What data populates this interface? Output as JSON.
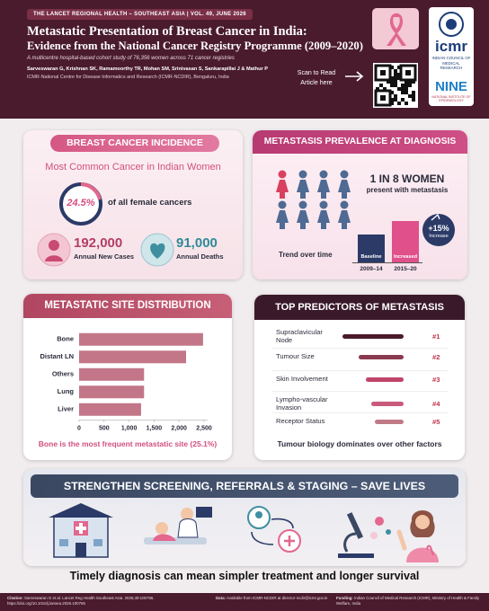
{
  "header": {
    "banner": "THE LANCET REGIONAL HEALTH – SOUTHEAST ASIA | VOL. 49, JUNE 2026",
    "title_line1": "Metastatic Presentation of Breast Cancer in India:",
    "title_line2": "Evidence from the National Cancer Registry Programme (2009–2020)",
    "subtitle": "A multicentre hospital-based cohort study of 76,356 women across 71 cancer registries",
    "authors": "Sarveswaran G, Krishnan SK, Ramamoorthy TR, Mohan SM, Srinivasan S, Sankarapillai J & Mathur P",
    "affiliation": "ICMR-National Centre for Disease Informatics and Research (ICMR-NCDIR), Bengaluru, India",
    "scan": "Scan to Read Article here",
    "logo_icmr": "icmr",
    "logo_icmr_sub": "INDIAN COUNCIL OF MEDICAL RESEARCH",
    "logo_nine": "NINE",
    "logo_nine_sub": "NATIONAL INSTITUTE OF EPIDEMIOLOGY"
  },
  "incidence": {
    "title": "BREAST CANCER INCIDENCE",
    "headline": "Most Common Cancer in Indian Women",
    "share": "24.5%",
    "share_text": "of all female cancers",
    "cases": "192,000",
    "cases_label": "Annual New Cases",
    "deaths": "91,000",
    "deaths_label": "Annual Deaths"
  },
  "prevalence": {
    "title": "METASTASIS PREVALENCE AT DIAGNOSIS",
    "headline": "1 IN 8 WOMEN",
    "headline_sub": "present with metastasis",
    "trend": "Trend over time",
    "bars": [
      {
        "label": "Baseline",
        "period": "2009–14"
      },
      {
        "label": "Increased",
        "period": "2015–20"
      }
    ],
    "change": "+15%",
    "change_label": "Increase"
  },
  "chart_data": {
    "type": "bar",
    "horizontal": true,
    "title": "METASTATIC SITE DISTRIBUTION",
    "categories": [
      "Bone",
      "Distant LN",
      "Others",
      "Lung",
      "Liver"
    ],
    "values": [
      2480,
      2140,
      1300,
      1300,
      1240
    ],
    "color": "#c27688",
    "xlim": [
      0,
      2500
    ],
    "xticks": [
      0,
      500,
      {
        "value": 1000,
        "label": "1,000"
      },
      {
        "value": 1500,
        "label": "1,500"
      },
      {
        "value": 2000,
        "label": "2,000"
      },
      {
        "value": 2500,
        "label": "2,500"
      }
    ],
    "note": "Bone is the most frequent metastatic site (25.1%)"
  },
  "predictors": {
    "title": "TOP PREDICTORS OF METASTASIS",
    "items": [
      {
        "label": "Supraclavicular Node",
        "rank": "#1"
      },
      {
        "label": "Tumour Size",
        "rank": "#2"
      },
      {
        "label": "Skin Involvement",
        "rank": "#3"
      },
      {
        "label": "Lympho-vascular Invasion",
        "rank": "#4"
      },
      {
        "label": "Receptor Status",
        "rank": "#5"
      }
    ],
    "note": "Tumour biology dominates over other factors"
  },
  "call_to_action": "STRENGTHEN SCREENING, REFERRALS & STAGING – SAVE LIVES",
  "tagline": "Timely diagnosis can mean simpler treatment and longer survival",
  "footer": {
    "citation_label": "Citation:",
    "citation": "Sarveswaran G et al. Lancet Reg Health Southeast Asia. 2026;49:100765. https://doi.org/10.1016/j.lansea.2026.100765",
    "data_label": "Data:",
    "data": "Available from ICMR-NCDIR at director-ncdir@icmr.gov.in",
    "funding_label": "Funding:",
    "funding": "Indian Council of Medical Research (ICMR), Ministry of Health & Family Welfare, India"
  }
}
